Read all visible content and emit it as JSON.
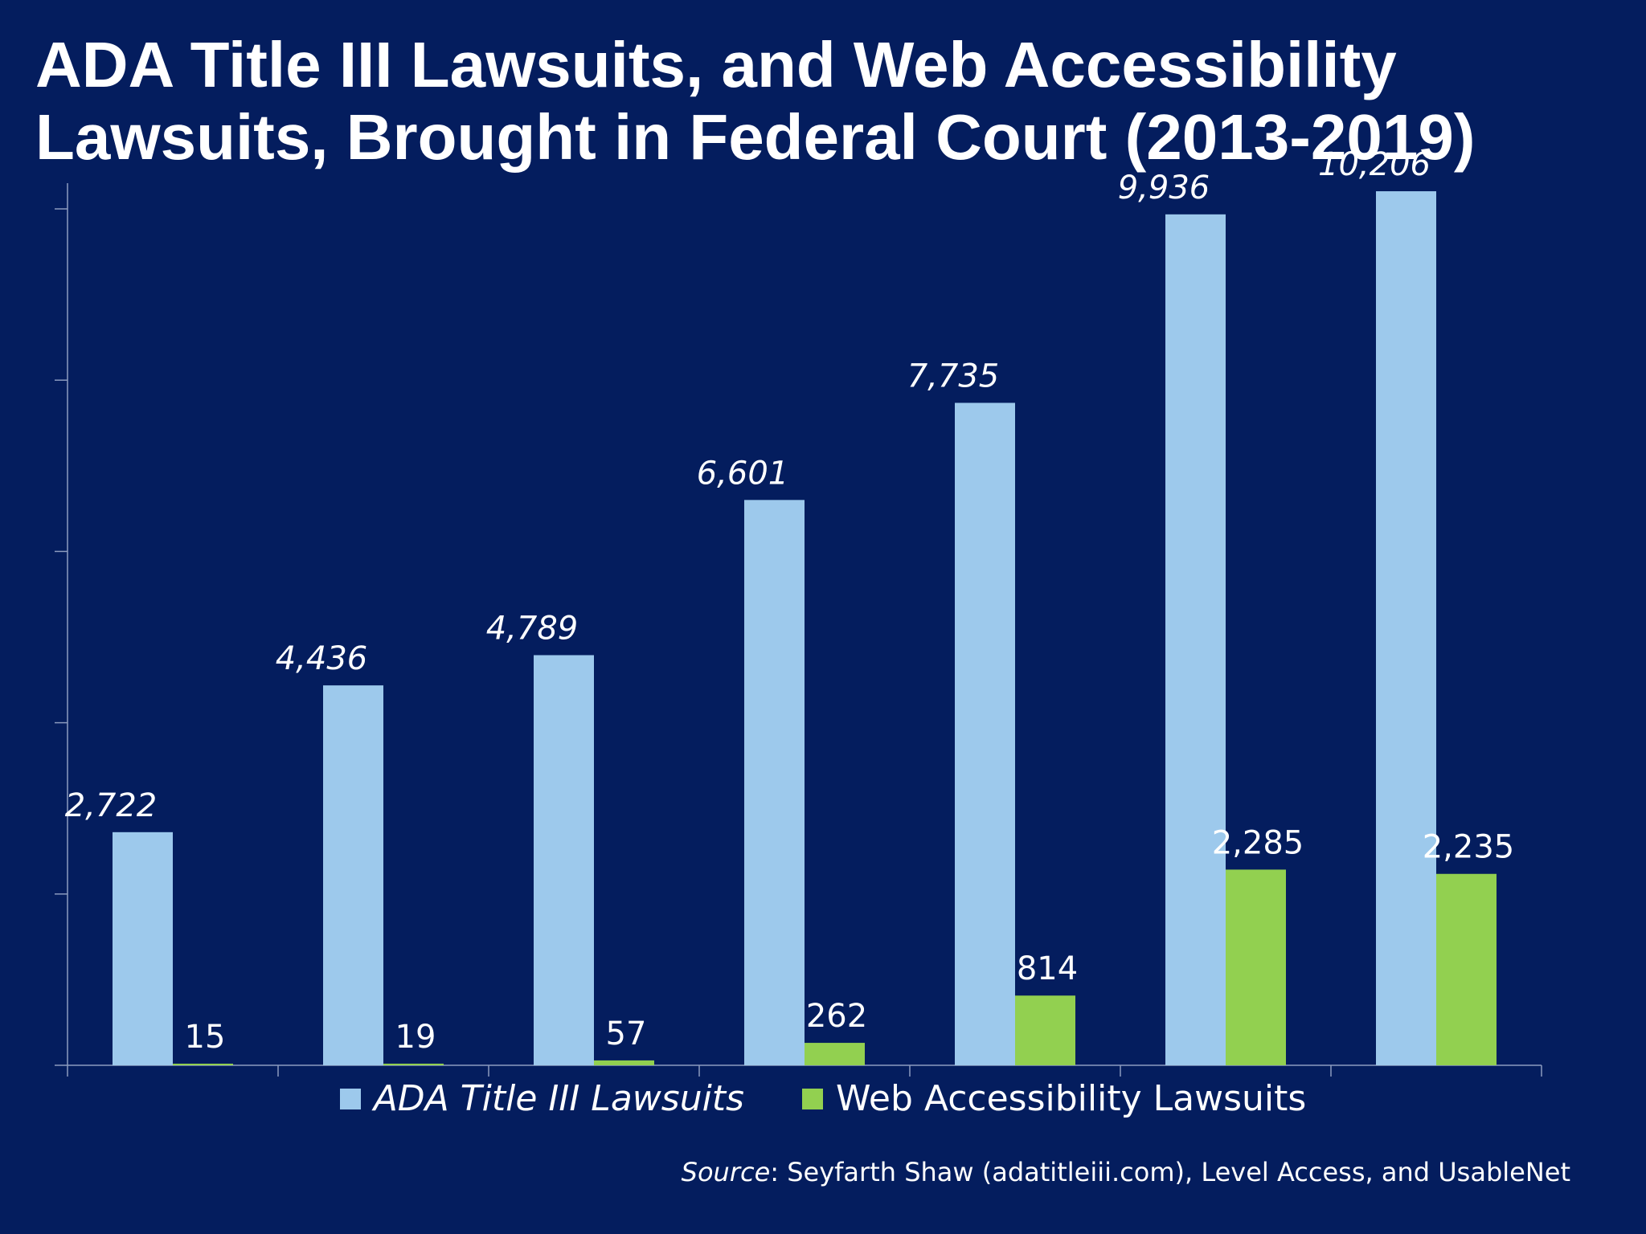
{
  "title": "ADA Title III Lawsuits, and Web Accessibility Lawsuits, Brought in Federal Court (2013-2019)",
  "source": {
    "label": "Source",
    "text": ": Seyfarth Shaw (adatitleiii.com), Level Access, and UsableNet"
  },
  "colors": {
    "background": "#041d5e",
    "ada": "#9dc9ec",
    "web": "#92d050",
    "axis": "#8c9bbf"
  },
  "chart_data": {
    "type": "bar",
    "categories": [
      "",
      "",
      "",
      "",
      "",
      "",
      ""
    ],
    "series": [
      {
        "name": "ADA Title III Lawsuits",
        "values": [
          2722,
          4436,
          4789,
          6601,
          7735,
          9936,
          10206
        ],
        "labels": [
          "2,722",
          "4,436",
          "4,789",
          "6,601",
          "7,735",
          "9,936",
          "10,206"
        ]
      },
      {
        "name": "Web Accessibility Lawsuits",
        "values": [
          15,
          19,
          57,
          262,
          814,
          2285,
          2235
        ],
        "labels": [
          "15",
          "19",
          "57",
          "262",
          "814",
          "2,285",
          "2,235"
        ]
      }
    ],
    "ylim": [
      0,
      10000
    ],
    "y_ticks": [
      0,
      2000,
      4000,
      6000,
      8000,
      10000
    ],
    "y_tick_labels_shown": false,
    "grid": false,
    "legend": "bottom"
  }
}
